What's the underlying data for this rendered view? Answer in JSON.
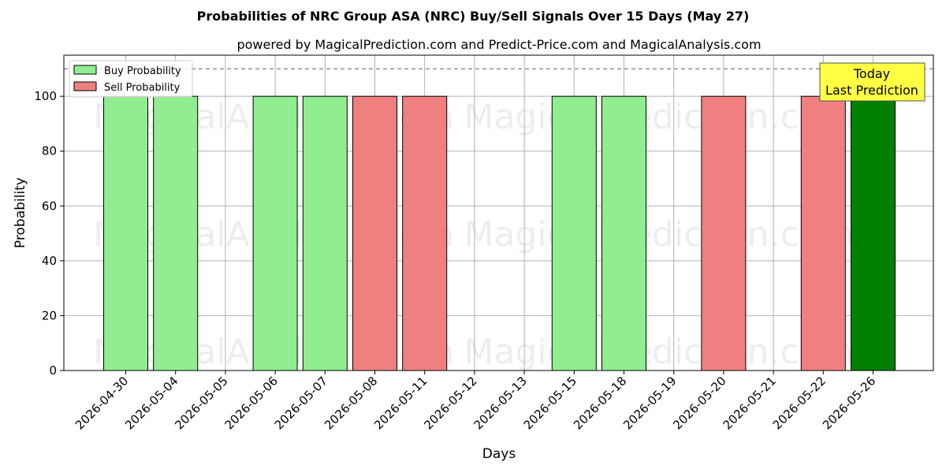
{
  "chart_data": {
    "type": "bar",
    "title": "Probabilities of NRC Group ASA (NRC) Buy/Sell Signals Over 15 Days (May 27)",
    "subtitle": "powered by MagicalPrediction.com and Predict-Price.com and MagicalAnalysis.com",
    "xlabel": "Days",
    "ylabel": "Probability",
    "ylim": [
      0,
      115
    ],
    "yticks": [
      0,
      20,
      40,
      60,
      80,
      100
    ],
    "grid": true,
    "legend_position": "top-left",
    "reference_line": {
      "y": 110,
      "style": "dashed",
      "color": "#808080"
    },
    "categories": [
      "2026-04-30",
      "2026-05-04",
      "2026-05-05",
      "2026-05-06",
      "2026-05-07",
      "2026-05-08",
      "2026-05-11",
      "2026-05-12",
      "2026-05-13",
      "2026-05-15",
      "2026-05-18",
      "2026-05-19",
      "2026-05-20",
      "2026-05-21",
      "2026-05-22",
      "2026-05-26"
    ],
    "bars": [
      {
        "date": "2026-04-30",
        "value": 100,
        "signal": "buy"
      },
      {
        "date": "2026-05-04",
        "value": 100,
        "signal": "buy"
      },
      {
        "date": "2026-05-06",
        "value": 100,
        "signal": "buy"
      },
      {
        "date": "2026-05-07",
        "value": 100,
        "signal": "buy"
      },
      {
        "date": "2026-05-08",
        "value": 100,
        "signal": "sell"
      },
      {
        "date": "2026-05-11",
        "value": 100,
        "signal": "sell"
      },
      {
        "date": "2026-05-15",
        "value": 100,
        "signal": "buy"
      },
      {
        "date": "2026-05-18",
        "value": 100,
        "signal": "buy"
      },
      {
        "date": "2026-05-20",
        "value": 100,
        "signal": "sell"
      },
      {
        "date": "2026-05-22",
        "value": 100,
        "signal": "sell"
      },
      {
        "date": "2026-05-26",
        "value": 100,
        "signal": "today"
      }
    ],
    "series": [
      {
        "name": "Buy Probability",
        "color": "#90ee90"
      },
      {
        "name": "Sell Probability",
        "color": "#f08080"
      }
    ],
    "today_color": "#008000",
    "annotation": {
      "line1": "Today",
      "line2": "Last Prediction",
      "color": "#ffff44"
    },
    "watermarks": [
      "MagicalAnalysis.com",
      "MagicalPrediction.com"
    ]
  }
}
